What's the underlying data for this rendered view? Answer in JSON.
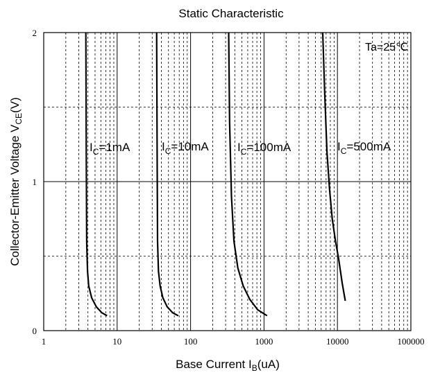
{
  "chart_data": {
    "type": "line",
    "title": "Static Characteristic",
    "xlabel": "Base Current  I",
    "xlabel_sub": "B",
    "xlabel_unit": "(uA)",
    "ylabel": "Collector-Emitter Voltage  V",
    "ylabel_sub": "CE",
    "ylabel_unit": "(V)",
    "x_scale": "log",
    "xlim": [
      1,
      100000
    ],
    "ylim": [
      0,
      2
    ],
    "x_ticks": [
      "1",
      "10",
      "100",
      "1000",
      "10000",
      "100000"
    ],
    "y_ticks": [
      "0",
      "1",
      "2"
    ],
    "grid": true,
    "annotation": "Ta=25℃",
    "series": [
      {
        "name_main": "I",
        "name_sub": "C",
        "name_rest": "=1mA",
        "x": [
          3.75,
          3.8,
          3.85,
          3.95,
          4.1,
          4.5,
          5.2,
          6.2,
          7.3
        ],
        "y": [
          2.0,
          1.2,
          0.6,
          0.4,
          0.3,
          0.22,
          0.16,
          0.12,
          0.1
        ]
      },
      {
        "name_main": "I",
        "name_sub": "C",
        "name_rest": "=10mA",
        "x": [
          34.5,
          35,
          35.5,
          36.5,
          38.5,
          42,
          48,
          57,
          68
        ],
        "y": [
          2.0,
          1.2,
          0.6,
          0.4,
          0.3,
          0.22,
          0.16,
          0.12,
          0.1
        ]
      },
      {
        "name_main": "I",
        "name_sub": "C",
        "name_rest": "=100mA",
        "x": [
          330,
          340,
          360,
          390,
          440,
          520,
          640,
          820,
          1100
        ],
        "y": [
          2.0,
          1.4,
          0.9,
          0.6,
          0.42,
          0.3,
          0.21,
          0.14,
          0.1
        ]
      },
      {
        "name_main": "I",
        "name_sub": "C",
        "name_rest": "=500mA",
        "x": [
          6300,
          6700,
          7200,
          7800,
          8500,
          9400,
          10400,
          11600,
          12800
        ],
        "y": [
          2.0,
          1.6,
          1.2,
          0.95,
          0.75,
          0.6,
          0.48,
          0.32,
          0.2
        ]
      }
    ]
  }
}
